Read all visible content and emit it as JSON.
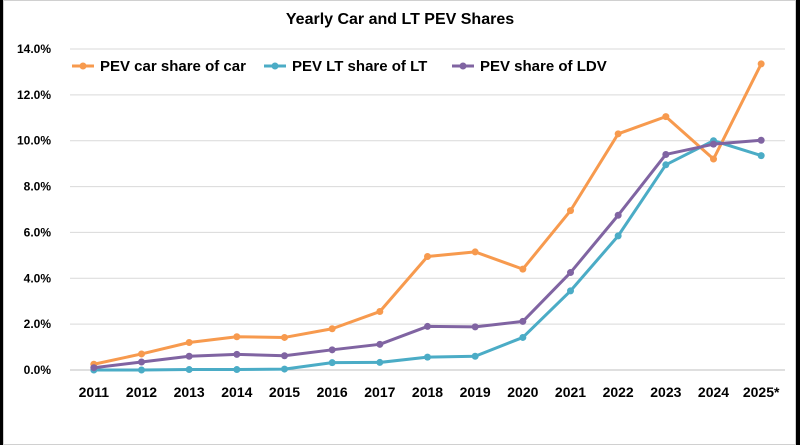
{
  "chart_data": {
    "type": "line",
    "title": "Yearly Car and LT PEV Shares",
    "xlabel": "",
    "ylabel": "",
    "categories": [
      "2011",
      "2012",
      "2013",
      "2014",
      "2015",
      "2016",
      "2017",
      "2018",
      "2019",
      "2020",
      "2021",
      "2022",
      "2023",
      "2024",
      "2025*"
    ],
    "ylim": [
      0,
      14
    ],
    "yticks": [
      "0.0%",
      "2.0%",
      "4.0%",
      "6.0%",
      "8.0%",
      "10.0%",
      "12.0%",
      "14.0%"
    ],
    "grid": true,
    "legend_position": "top-left",
    "series": [
      {
        "name": "PEV car share of car",
        "color": "#F79A4E",
        "values": [
          0.25,
          0.7,
          1.2,
          1.45,
          1.42,
          1.8,
          2.55,
          4.95,
          5.15,
          4.4,
          6.95,
          10.3,
          11.05,
          9.2,
          13.35
        ]
      },
      {
        "name": "PEV LT share of LT",
        "color": "#4BACC6",
        "values": [
          0.0,
          0.0,
          0.02,
          0.02,
          0.04,
          0.32,
          0.33,
          0.56,
          0.6,
          1.42,
          3.45,
          5.85,
          8.95,
          10.0,
          9.35
        ]
      },
      {
        "name": "PEV share of LDV",
        "color": "#8064A2",
        "values": [
          0.1,
          0.35,
          0.6,
          0.68,
          0.62,
          0.88,
          1.12,
          1.9,
          1.88,
          2.12,
          4.25,
          6.75,
          9.4,
          9.85,
          10.02
        ]
      }
    ]
  }
}
